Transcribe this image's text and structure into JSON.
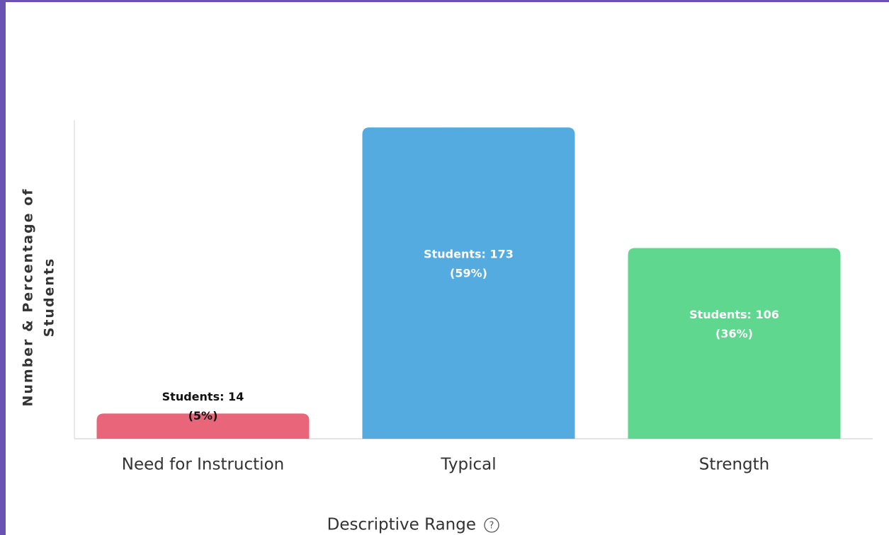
{
  "chart_data": {
    "type": "bar",
    "categories": [
      "Need for Instruction",
      "Typical",
      "Strength"
    ],
    "values": [
      14,
      173,
      106
    ],
    "value_labels": [
      "Students: 14",
      "Students: 173",
      "Students: 106"
    ],
    "percentages": [
      5,
      59,
      36
    ],
    "percentage_labels": [
      "(5%)",
      "(59%)",
      "(36%)"
    ],
    "colors": [
      "#e8657a",
      "#53abdf",
      "#5fd78e"
    ],
    "ylim": [
      0,
      177
    ],
    "y_label": [
      "Number & Percentage of",
      "Students"
    ],
    "x_label": "Descriptive Range",
    "grid": false
  }
}
